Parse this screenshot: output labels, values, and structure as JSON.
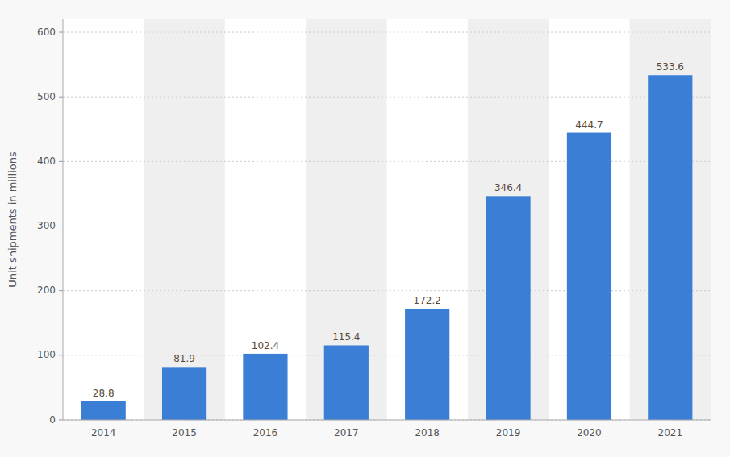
{
  "chart_data": {
    "type": "bar",
    "categories": [
      "2014",
      "2015",
      "2016",
      "2017",
      "2018",
      "2019",
      "2020",
      "2021"
    ],
    "values": [
      28.8,
      81.9,
      102.4,
      115.4,
      172.2,
      346.4,
      444.7,
      533.6
    ],
    "color": "#3a7fd5",
    "y_label": "Unit shipments in millions",
    "ylim": [
      0,
      620
    ],
    "yticks": [
      0,
      100,
      200,
      300,
      400,
      500,
      600
    ],
    "grid": true,
    "data_labels": true
  }
}
